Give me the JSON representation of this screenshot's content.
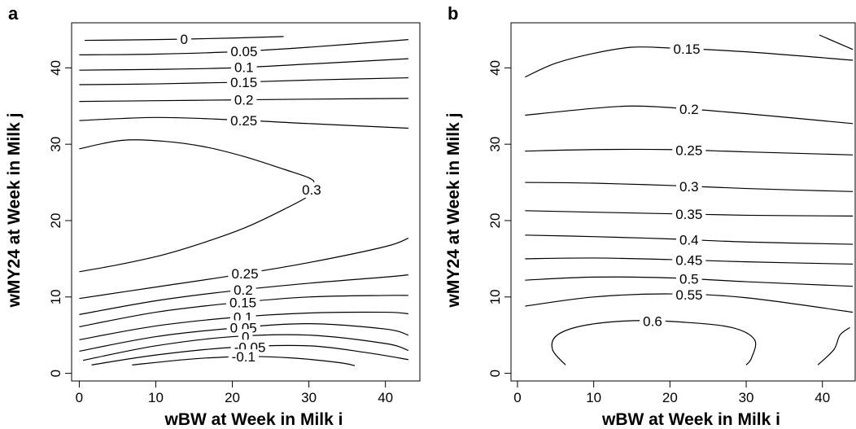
{
  "chart_data": [
    {
      "type": "contour",
      "title": "a",
      "xlabel": "wBW at Week in Milk i",
      "ylabel": "wMY24 at Week in Milk j",
      "xlim": [
        -1,
        44.5
      ],
      "ylim": [
        -1,
        45.9
      ],
      "xticks": [
        0,
        10,
        20,
        30,
        40
      ],
      "yticks": [
        0,
        10,
        20,
        30,
        40
      ],
      "color": "#000000",
      "contours": [
        {
          "level": 0,
          "x": [
            0.7,
            10,
            20,
            26.7
          ],
          "y": [
            43.6,
            43.7,
            43.9,
            44.1
          ]
        },
        {
          "level": 0.05,
          "x": [
            0,
            10,
            20,
            30,
            43
          ],
          "y": [
            41.7,
            41.8,
            42.1,
            42.7,
            43.7
          ]
        },
        {
          "level": 0.1,
          "x": [
            0,
            10,
            20,
            30,
            43
          ],
          "y": [
            39.7,
            39.8,
            40.0,
            40.5,
            41.2
          ]
        },
        {
          "level": 0.15,
          "x": [
            0,
            10,
            20,
            30,
            43
          ],
          "y": [
            37.8,
            37.9,
            38.1,
            38.4,
            38.7
          ]
        },
        {
          "level": 0.2,
          "x": [
            0,
            10,
            20,
            30,
            43
          ],
          "y": [
            35.6,
            35.7,
            35.8,
            35.9,
            36.0
          ]
        },
        {
          "level": 0.25,
          "x": [
            0,
            10,
            20,
            30,
            43
          ],
          "y": [
            33.1,
            33.5,
            33.2,
            32.7,
            32.1
          ]
        },
        {
          "level": 0.3,
          "x": [
            0,
            5.5,
            10.9,
            16.2,
            21.5,
            26.8,
            30,
            30.7,
            30,
            26.8,
            21.5,
            16.2,
            10.9,
            5.5,
            0
          ],
          "y": [
            29.4,
            30.5,
            30.4,
            29.7,
            28.4,
            26.7,
            25.6,
            24.8,
            23.3,
            21.5,
            19.0,
            17.1,
            15.5,
            14.3,
            13.3
          ]
        },
        {
          "level": 0.25,
          "x": [
            0,
            10,
            20,
            30,
            40,
            43
          ],
          "y": [
            9.8,
            11.3,
            12.8,
            14.5,
            16.6,
            17.7
          ]
        },
        {
          "level": 0.2,
          "x": [
            0,
            10,
            20,
            30,
            40,
            43
          ],
          "y": [
            7.7,
            9.5,
            10.8,
            11.8,
            12.6,
            12.9
          ]
        },
        {
          "level": 0.15,
          "x": [
            0,
            10,
            20,
            30,
            40,
            43
          ],
          "y": [
            6.1,
            8.0,
            9.2,
            10.0,
            10.2,
            10.2
          ]
        },
        {
          "level": 0.1,
          "x": [
            0,
            10,
            20,
            30,
            40,
            43
          ],
          "y": [
            4.4,
            6.2,
            7.3,
            7.9,
            8.0,
            7.8
          ]
        },
        {
          "level": 0.05,
          "x": [
            0,
            10,
            20,
            30,
            40,
            43
          ],
          "y": [
            2.9,
            4.8,
            5.9,
            6.5,
            5.8,
            5.0
          ]
        },
        {
          "level": 0,
          "x": [
            0.5,
            10,
            20,
            30,
            40,
            43
          ],
          "y": [
            1.7,
            3.6,
            4.8,
            5.0,
            3.9,
            3.0
          ]
        },
        {
          "level": -0.05,
          "x": [
            1.6,
            10,
            20,
            30,
            37.6,
            43
          ],
          "y": [
            1.1,
            2.4,
            3.4,
            3.6,
            2.7,
            1.8
          ]
        },
        {
          "level": -0.1,
          "x": [
            6.9,
            15,
            22,
            28,
            34,
            36
          ],
          "y": [
            1.1,
            1.9,
            2.2,
            2.0,
            1.4,
            1.0
          ]
        }
      ]
    },
    {
      "type": "contour",
      "title": "b",
      "xlabel": "wBW at Week in Milk i",
      "ylabel": "wMY24 at Week in Milk j",
      "xlim": [
        -0.85,
        44.3
      ],
      "ylim": [
        -1,
        45.9
      ],
      "xticks": [
        0,
        10,
        20,
        30,
        40
      ],
      "yticks": [
        0,
        10,
        20,
        30,
        40
      ],
      "color": "#000000",
      "contours": [
        {
          "level": null,
          "x": [
            39.6,
            44
          ],
          "y": [
            44.3,
            42.4
          ]
        },
        {
          "level": 0.15,
          "x": [
            1,
            5,
            10,
            15,
            20,
            30,
            44
          ],
          "y": [
            38.8,
            40.6,
            41.9,
            42.7,
            42.6,
            42.1,
            41.0
          ]
        },
        {
          "level": 0.2,
          "x": [
            1,
            10,
            15,
            20,
            30,
            44
          ],
          "y": [
            33.8,
            34.7,
            35.0,
            34.8,
            34.0,
            32.7
          ]
        },
        {
          "level": 0.25,
          "x": [
            1,
            10,
            20,
            30,
            44
          ],
          "y": [
            29.1,
            29.3,
            29.3,
            29.0,
            28.6
          ]
        },
        {
          "level": 0.3,
          "x": [
            1,
            10,
            20,
            30,
            44
          ],
          "y": [
            25.0,
            24.9,
            24.6,
            24.2,
            23.8
          ]
        },
        {
          "level": 0.35,
          "x": [
            1,
            10,
            20,
            30,
            44
          ],
          "y": [
            21.3,
            21.1,
            20.9,
            20.7,
            20.6
          ]
        },
        {
          "level": 0.4,
          "x": [
            1,
            10,
            20,
            30,
            44
          ],
          "y": [
            18.1,
            17.9,
            17.6,
            17.2,
            16.9
          ]
        },
        {
          "level": 0.45,
          "x": [
            1,
            10,
            20,
            30,
            44
          ],
          "y": [
            15.0,
            15.1,
            14.9,
            14.6,
            14.3
          ]
        },
        {
          "level": 0.5,
          "x": [
            1,
            10,
            20,
            30,
            44
          ],
          "y": [
            12.2,
            12.6,
            12.5,
            12.0,
            11.4
          ]
        },
        {
          "level": 0.55,
          "x": [
            1,
            10,
            20,
            30,
            44
          ],
          "y": [
            8.8,
            10.0,
            10.4,
            9.9,
            8.0
          ]
        },
        {
          "level": 0.6,
          "x": [
            6.3,
            4.6,
            5.2,
            8.9,
            15.3,
            21.7,
            28.1,
            31.1,
            30.7,
            30
          ],
          "y": [
            1.1,
            3.1,
            5.0,
            6.3,
            6.9,
            6.7,
            6.0,
            4.4,
            2.0,
            1.1
          ]
        },
        {
          "level": null,
          "x": [
            39.4,
            41.5,
            42.3,
            43.6
          ],
          "y": [
            1.1,
            3.1,
            5.0,
            6.0
          ]
        }
      ]
    }
  ]
}
